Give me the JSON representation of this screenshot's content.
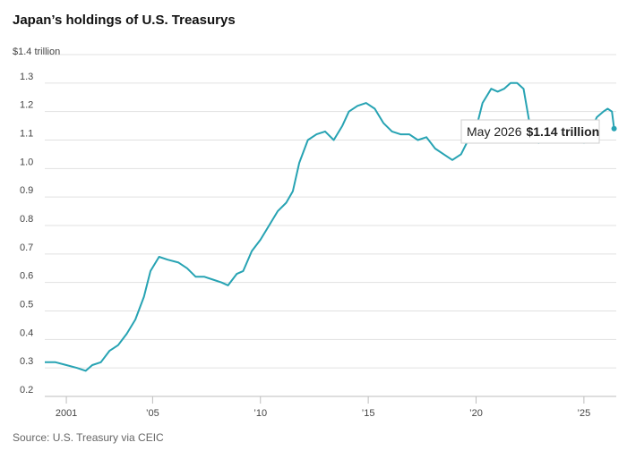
{
  "chart_data": {
    "type": "line",
    "title": "Japan’s holdings of U.S. Treasurys",
    "unit_label": "$1.4 trillion",
    "ylim": [
      0.2,
      1.4
    ],
    "yticks": [
      "0.2",
      "0.3",
      "0.4",
      "0.5",
      "0.6",
      "0.7",
      "0.8",
      "0.9",
      "1.0",
      "1.1",
      "1.2",
      "1.3"
    ],
    "xlim": [
      2000.0,
      2026.5
    ],
    "xticks": [
      {
        "value": 2001,
        "label": "2001"
      },
      {
        "value": 2005,
        "label": "’05"
      },
      {
        "value": 2010,
        "label": "’10"
      },
      {
        "value": 2015,
        "label": "’15"
      },
      {
        "value": 2020,
        "label": "’20"
      },
      {
        "value": 2025,
        "label": "’25"
      }
    ],
    "grid": true,
    "line_color": "#27a3b3",
    "series": [
      {
        "x": [
          2000.0,
          2000.5,
          2001.0,
          2001.5,
          2001.9,
          2002.2,
          2002.6,
          2003.0,
          2003.4,
          2003.8,
          2004.2,
          2004.6,
          2004.9,
          2005.3,
          2005.7,
          2006.2,
          2006.6,
          2007.0,
          2007.4,
          2007.8,
          2008.2,
          2008.5,
          2008.9,
          2009.2,
          2009.6,
          2010.0,
          2010.4,
          2010.8,
          2011.2,
          2011.5,
          2011.8,
          2012.2,
          2012.6,
          2013.0,
          2013.4,
          2013.8,
          2014.1,
          2014.5,
          2014.9,
          2015.3,
          2015.7,
          2016.1,
          2016.5,
          2016.9,
          2017.3,
          2017.7,
          2018.1,
          2018.5,
          2018.9,
          2019.3,
          2019.7,
          2020.0,
          2020.3,
          2020.7,
          2021.0,
          2021.3,
          2021.6,
          2021.9,
          2022.2,
          2022.5,
          2022.9,
          2023.2,
          2023.6,
          2024.0,
          2024.4,
          2024.8,
          2025.0,
          2025.3,
          2025.6,
          2025.9,
          2026.1,
          2026.3,
          2026.4
        ],
        "y": [
          0.32,
          0.32,
          0.31,
          0.3,
          0.29,
          0.31,
          0.32,
          0.36,
          0.38,
          0.42,
          0.47,
          0.55,
          0.64,
          0.69,
          0.68,
          0.67,
          0.65,
          0.62,
          0.62,
          0.61,
          0.6,
          0.59,
          0.63,
          0.64,
          0.71,
          0.75,
          0.8,
          0.85,
          0.88,
          0.92,
          1.02,
          1.1,
          1.12,
          1.13,
          1.1,
          1.15,
          1.2,
          1.22,
          1.23,
          1.21,
          1.16,
          1.13,
          1.12,
          1.12,
          1.1,
          1.11,
          1.07,
          1.05,
          1.03,
          1.05,
          1.11,
          1.14,
          1.23,
          1.28,
          1.27,
          1.28,
          1.3,
          1.3,
          1.28,
          1.15,
          1.09,
          1.11,
          1.1,
          1.1,
          1.12,
          1.1,
          1.09,
          1.13,
          1.18,
          1.2,
          1.21,
          1.2,
          1.14
        ]
      }
    ],
    "annotation": {
      "label": "May 2026",
      "value": "$1.14 trillion"
    },
    "source": "Source: U.S. Treasury via CEIC"
  }
}
